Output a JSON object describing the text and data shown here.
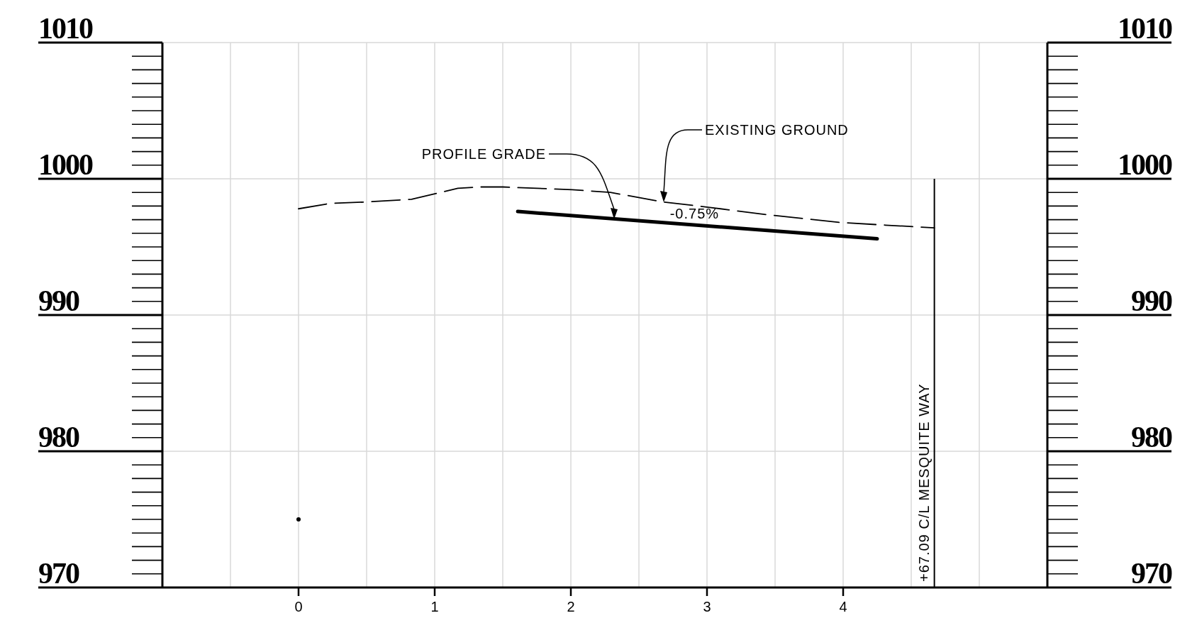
{
  "chart_data": {
    "type": "line",
    "series": [
      {
        "color": "#000000",
        "line_style": "dashed",
        "x": [
          0,
          0.235,
          0.5,
          0.83,
          1.17,
          1.34,
          1.5,
          2.01,
          2.29,
          2.68,
          3.02,
          3.41,
          3.97,
          4.31,
          4.67
        ],
        "values": [
          997.8,
          998.2,
          998.3,
          998.5,
          999.3,
          999.4,
          999.4,
          999.2,
          999.0,
          998.3,
          997.9,
          997.4,
          996.8,
          996.6,
          996.4
        ]
      },
      {
        "color": "#000000",
        "line_style": "solid",
        "x": [
          1.61,
          4.25
        ],
        "values": [
          997.6,
          995.6
        ]
      },
      {
        "type": "scatter",
        "color": "#000000",
        "x": [
          0
        ],
        "values": [
          975
        ]
      }
    ],
    "xlim": [
      -1,
      5.5
    ],
    "xticks": [
      {
        "value": -0.5,
        "label": null
      },
      0,
      {
        "value": 0.5,
        "label": null
      },
      1,
      {
        "value": 1.5,
        "label": null
      },
      2,
      {
        "value": 2.5,
        "label": null
      },
      3,
      {
        "value": 3.5,
        "label": null
      },
      4,
      {
        "value": 4.5,
        "label": null
      },
      {
        "value": 5,
        "label": null
      }
    ],
    "ylim": [
      970,
      1010
    ],
    "yticks": [
      970,
      980,
      990,
      1000,
      1010
    ],
    "y2lim": [
      970,
      1010
    ],
    "y2ticks": [
      970,
      980,
      990,
      1000,
      1010
    ],
    "grid": true,
    "ref_lines": [
      {
        "axis": "x",
        "value": 4.67,
        "label": "+67.09 C/L MESQUITE WAY",
        "color": "#000000"
      }
    ],
    "annotations": [
      "PROFILE GRADE",
      "EXISTING GROUND",
      {
        "text": "-0.75%",
        "x": 2.95,
        "y": 996.6
      }
    ]
  }
}
